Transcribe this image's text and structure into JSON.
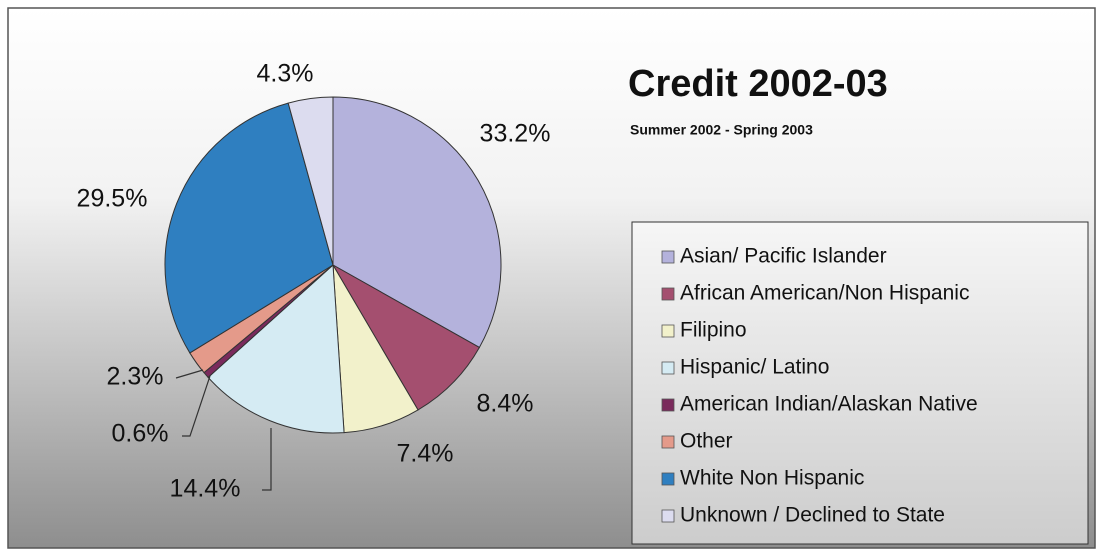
{
  "chart_data": {
    "type": "pie",
    "title": "Credit 2002-03",
    "subtitle": "Summer 2002 - Spring 2003",
    "categories": [
      "Asian/ Pacific Islander",
      "African American/Non Hispanic",
      "Filipino",
      "Hispanic/ Latino",
      "American Indian/Alaskan Native",
      "Other",
      "White Non Hispanic",
      "Unknown / Declined to State"
    ],
    "values": [
      33.2,
      8.4,
      7.4,
      14.4,
      0.6,
      2.3,
      29.5,
      4.3
    ],
    "value_labels": [
      "33.2%",
      "8.4%",
      "7.4%",
      "14.4%",
      "0.6%",
      "2.3%",
      "29.5%",
      "4.3%"
    ],
    "colors": [
      "#b4b2dc",
      "#a44f6f",
      "#f2f1cb",
      "#d5ebf3",
      "#7a2a5c",
      "#e49a8a",
      "#2f7fc0",
      "#dcdcef"
    ],
    "legend": "right"
  }
}
